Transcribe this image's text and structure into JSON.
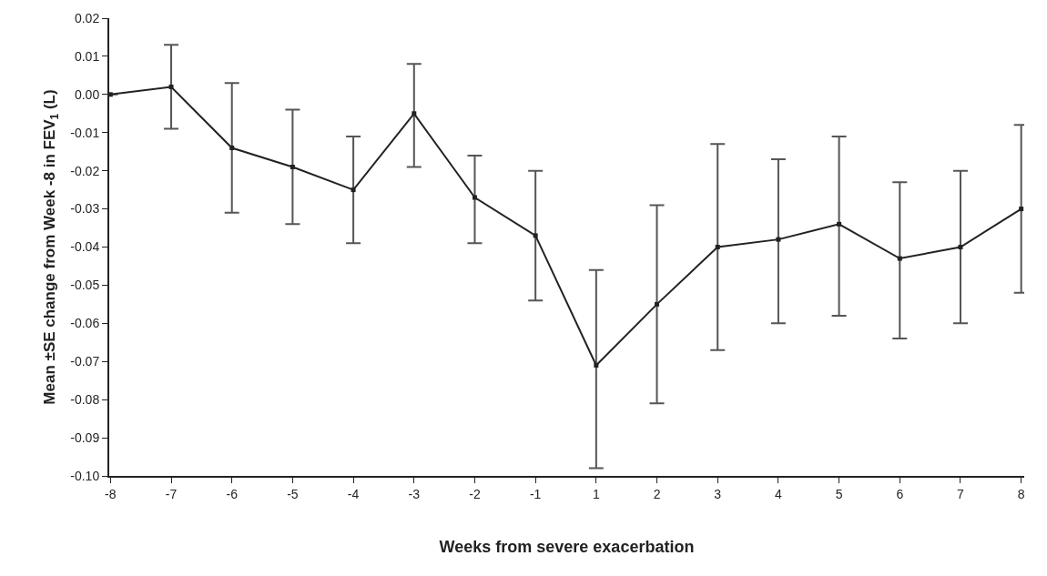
{
  "chart_data": {
    "type": "line",
    "xlabel": "Weeks from severe exacerbation",
    "ylabel": "Mean ±SE change from Week -8 in FEV$_{1}$ (L)",
    "categories": [
      "-8",
      "-7",
      "-6",
      "-5",
      "-4",
      "-3",
      "-2",
      "-1",
      "1",
      "2",
      "3",
      "4",
      "5",
      "6",
      "7",
      "8"
    ],
    "series": [
      {
        "color": "#222222",
        "values": [
          0.0,
          0.002,
          -0.014,
          -0.019,
          -0.025,
          -0.005,
          -0.027,
          -0.037,
          -0.071,
          -0.055,
          -0.04,
          -0.038,
          -0.034,
          -0.043,
          -0.04,
          -0.03
        ],
        "errors": [
          null,
          [
            -0.009,
            0.013
          ],
          [
            -0.031,
            0.003
          ],
          [
            -0.034,
            -0.004
          ],
          [
            -0.039,
            -0.011
          ],
          [
            -0.019,
            0.008
          ],
          [
            -0.039,
            -0.016
          ],
          [
            -0.054,
            -0.02
          ],
          [
            -0.098,
            -0.046
          ],
          [
            -0.081,
            -0.029
          ],
          [
            -0.067,
            -0.013
          ],
          [
            -0.06,
            -0.017
          ],
          [
            -0.058,
            -0.011
          ],
          [
            -0.064,
            -0.023
          ],
          [
            -0.06,
            -0.02
          ],
          [
            -0.052,
            -0.008
          ]
        ]
      }
    ],
    "ylim": [
      -0.1,
      0.02
    ],
    "yticks": [
      {
        "value": 0.02,
        "label": "0.02"
      },
      {
        "value": 0.01,
        "label": "0.01"
      },
      {
        "value": 0,
        "label": "0.00"
      },
      {
        "value": -0.01,
        "label": "-0.01"
      },
      {
        "value": -0.02,
        "label": "-0.02"
      },
      {
        "value": -0.03,
        "label": "-0.03"
      },
      {
        "value": -0.04,
        "label": "-0.04"
      },
      {
        "value": -0.05,
        "label": "-0.05"
      },
      {
        "value": -0.06,
        "label": "-0.06"
      },
      {
        "value": -0.07,
        "label": "-0.07"
      },
      {
        "value": -0.08,
        "label": "-0.08"
      },
      {
        "value": -0.09,
        "label": "-0.09"
      },
      {
        "value": -0.1,
        "label": "-0.10"
      }
    ],
    "marker": "square",
    "line_style": "solid"
  }
}
